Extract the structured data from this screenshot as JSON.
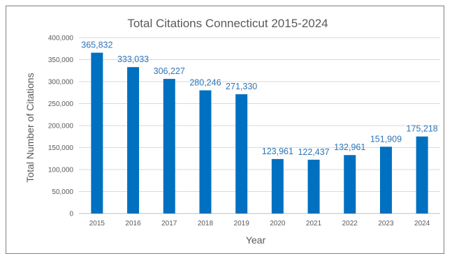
{
  "chart_data": {
    "type": "bar",
    "title": "Total Citations Connecticut 2015-2024",
    "xlabel": "Year",
    "ylabel": "Total Number of Citations",
    "categories": [
      "2015",
      "2016",
      "2017",
      "2018",
      "2019",
      "2020",
      "2021",
      "2022",
      "2023",
      "2024"
    ],
    "values": [
      365832,
      333033,
      306227,
      280246,
      271330,
      123961,
      122437,
      132961,
      151909,
      175218
    ],
    "data_labels": [
      "365,832",
      "333,033",
      "306,227",
      "280,246",
      "271,330",
      "123,961",
      "122,437",
      "132,961",
      "151,909",
      "175,218"
    ],
    "yticks": [
      "0",
      "50,000",
      "100,000",
      "150,000",
      "200,000",
      "250,000",
      "300,000",
      "350,000",
      "400,000"
    ],
    "ylim": [
      0,
      400000
    ],
    "grid": true,
    "legend": "none",
    "colors": {
      "bar": "#0070c0",
      "label": "#2e75b6"
    }
  }
}
